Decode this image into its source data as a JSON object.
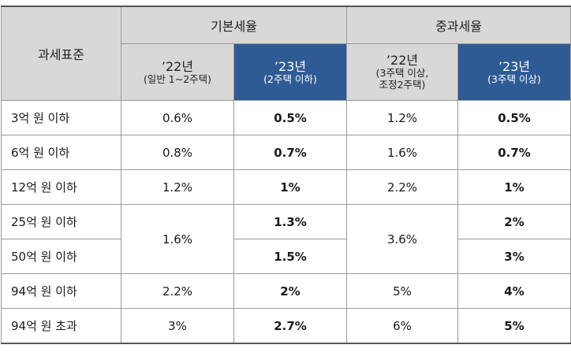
{
  "table": {
    "row_header": "과세표준",
    "groups": [
      {
        "label": "기본세율"
      },
      {
        "label": "중과세율"
      }
    ],
    "subheaders": [
      {
        "year": "’22년",
        "note": "(일반 1~2주택)"
      },
      {
        "year": "’23년",
        "note": "(2주택 이하)"
      },
      {
        "year": "’22년",
        "note": "(3주택 이상,\n조정2주택)"
      },
      {
        "year": "’23년",
        "note": "(3주택 이상)"
      }
    ],
    "rows": [
      {
        "label": "3억 원 이하",
        "basic22": "0.6%",
        "basic23": "0.5%",
        "heavy22": "1.2%",
        "heavy23": "0.5%"
      },
      {
        "label": "6억 원 이하",
        "basic22": "0.8%",
        "basic23": "0.7%",
        "heavy22": "1.6%",
        "heavy23": "0.7%"
      },
      {
        "label": "12억 원 이하",
        "basic22": "1.2%",
        "basic23": "1%",
        "heavy22": "2.2%",
        "heavy23": "1%"
      },
      {
        "label": "25억 원 이하",
        "basic22": "1.6%",
        "basic23": "1.3%",
        "heavy22": "3.6%",
        "heavy23": "2%"
      },
      {
        "label": "50억 원 이하",
        "basic22": "",
        "basic23": "1.5%",
        "heavy22": "",
        "heavy23": "3%"
      },
      {
        "label": "94억 원 이하",
        "basic22": "2.2%",
        "basic23": "2%",
        "heavy22": "5%",
        "heavy23": "4%"
      },
      {
        "label": "94억 원 초과",
        "basic22": "3%",
        "basic23": "2.7%",
        "heavy22": "6%",
        "heavy23": "5%"
      }
    ]
  },
  "colors": {
    "header_gray": "#d8d8d8",
    "header_blue": "#2f5b95"
  }
}
